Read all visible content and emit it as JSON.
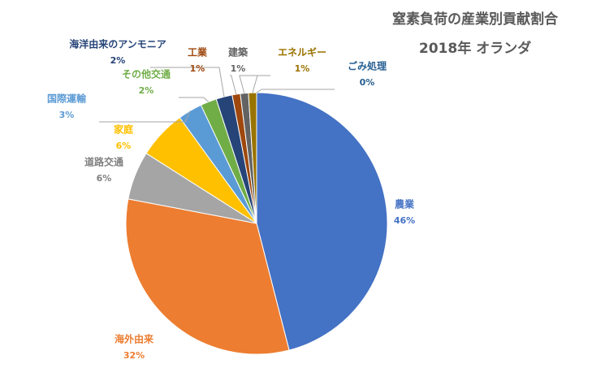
{
  "chart_data": {
    "type": "pie",
    "title": "窒素負荷の産業別貢献割合",
    "subtitle": "2018年 オランダ",
    "categories": [
      "農業",
      "海外由来",
      "道路交通",
      "家庭",
      "国際運輸",
      "その他交通",
      "海洋由来のアンモニア",
      "工業",
      "建築",
      "エネルギー",
      "ごみ処理"
    ],
    "values": [
      46,
      32,
      6,
      6,
      3,
      2,
      2,
      1,
      1,
      1,
      0
    ],
    "value_labels": [
      "46%",
      "32%",
      "6%",
      "6%",
      "3%",
      "2%",
      "2%",
      "1%",
      "1%",
      "1%",
      "0%"
    ],
    "colors": [
      "#4472c4",
      "#ed7d31",
      "#a5a5a5",
      "#ffc000",
      "#5b9bd5",
      "#70ad47",
      "#264478",
      "#9e480e",
      "#636363",
      "#997300",
      "#255e91"
    ]
  }
}
